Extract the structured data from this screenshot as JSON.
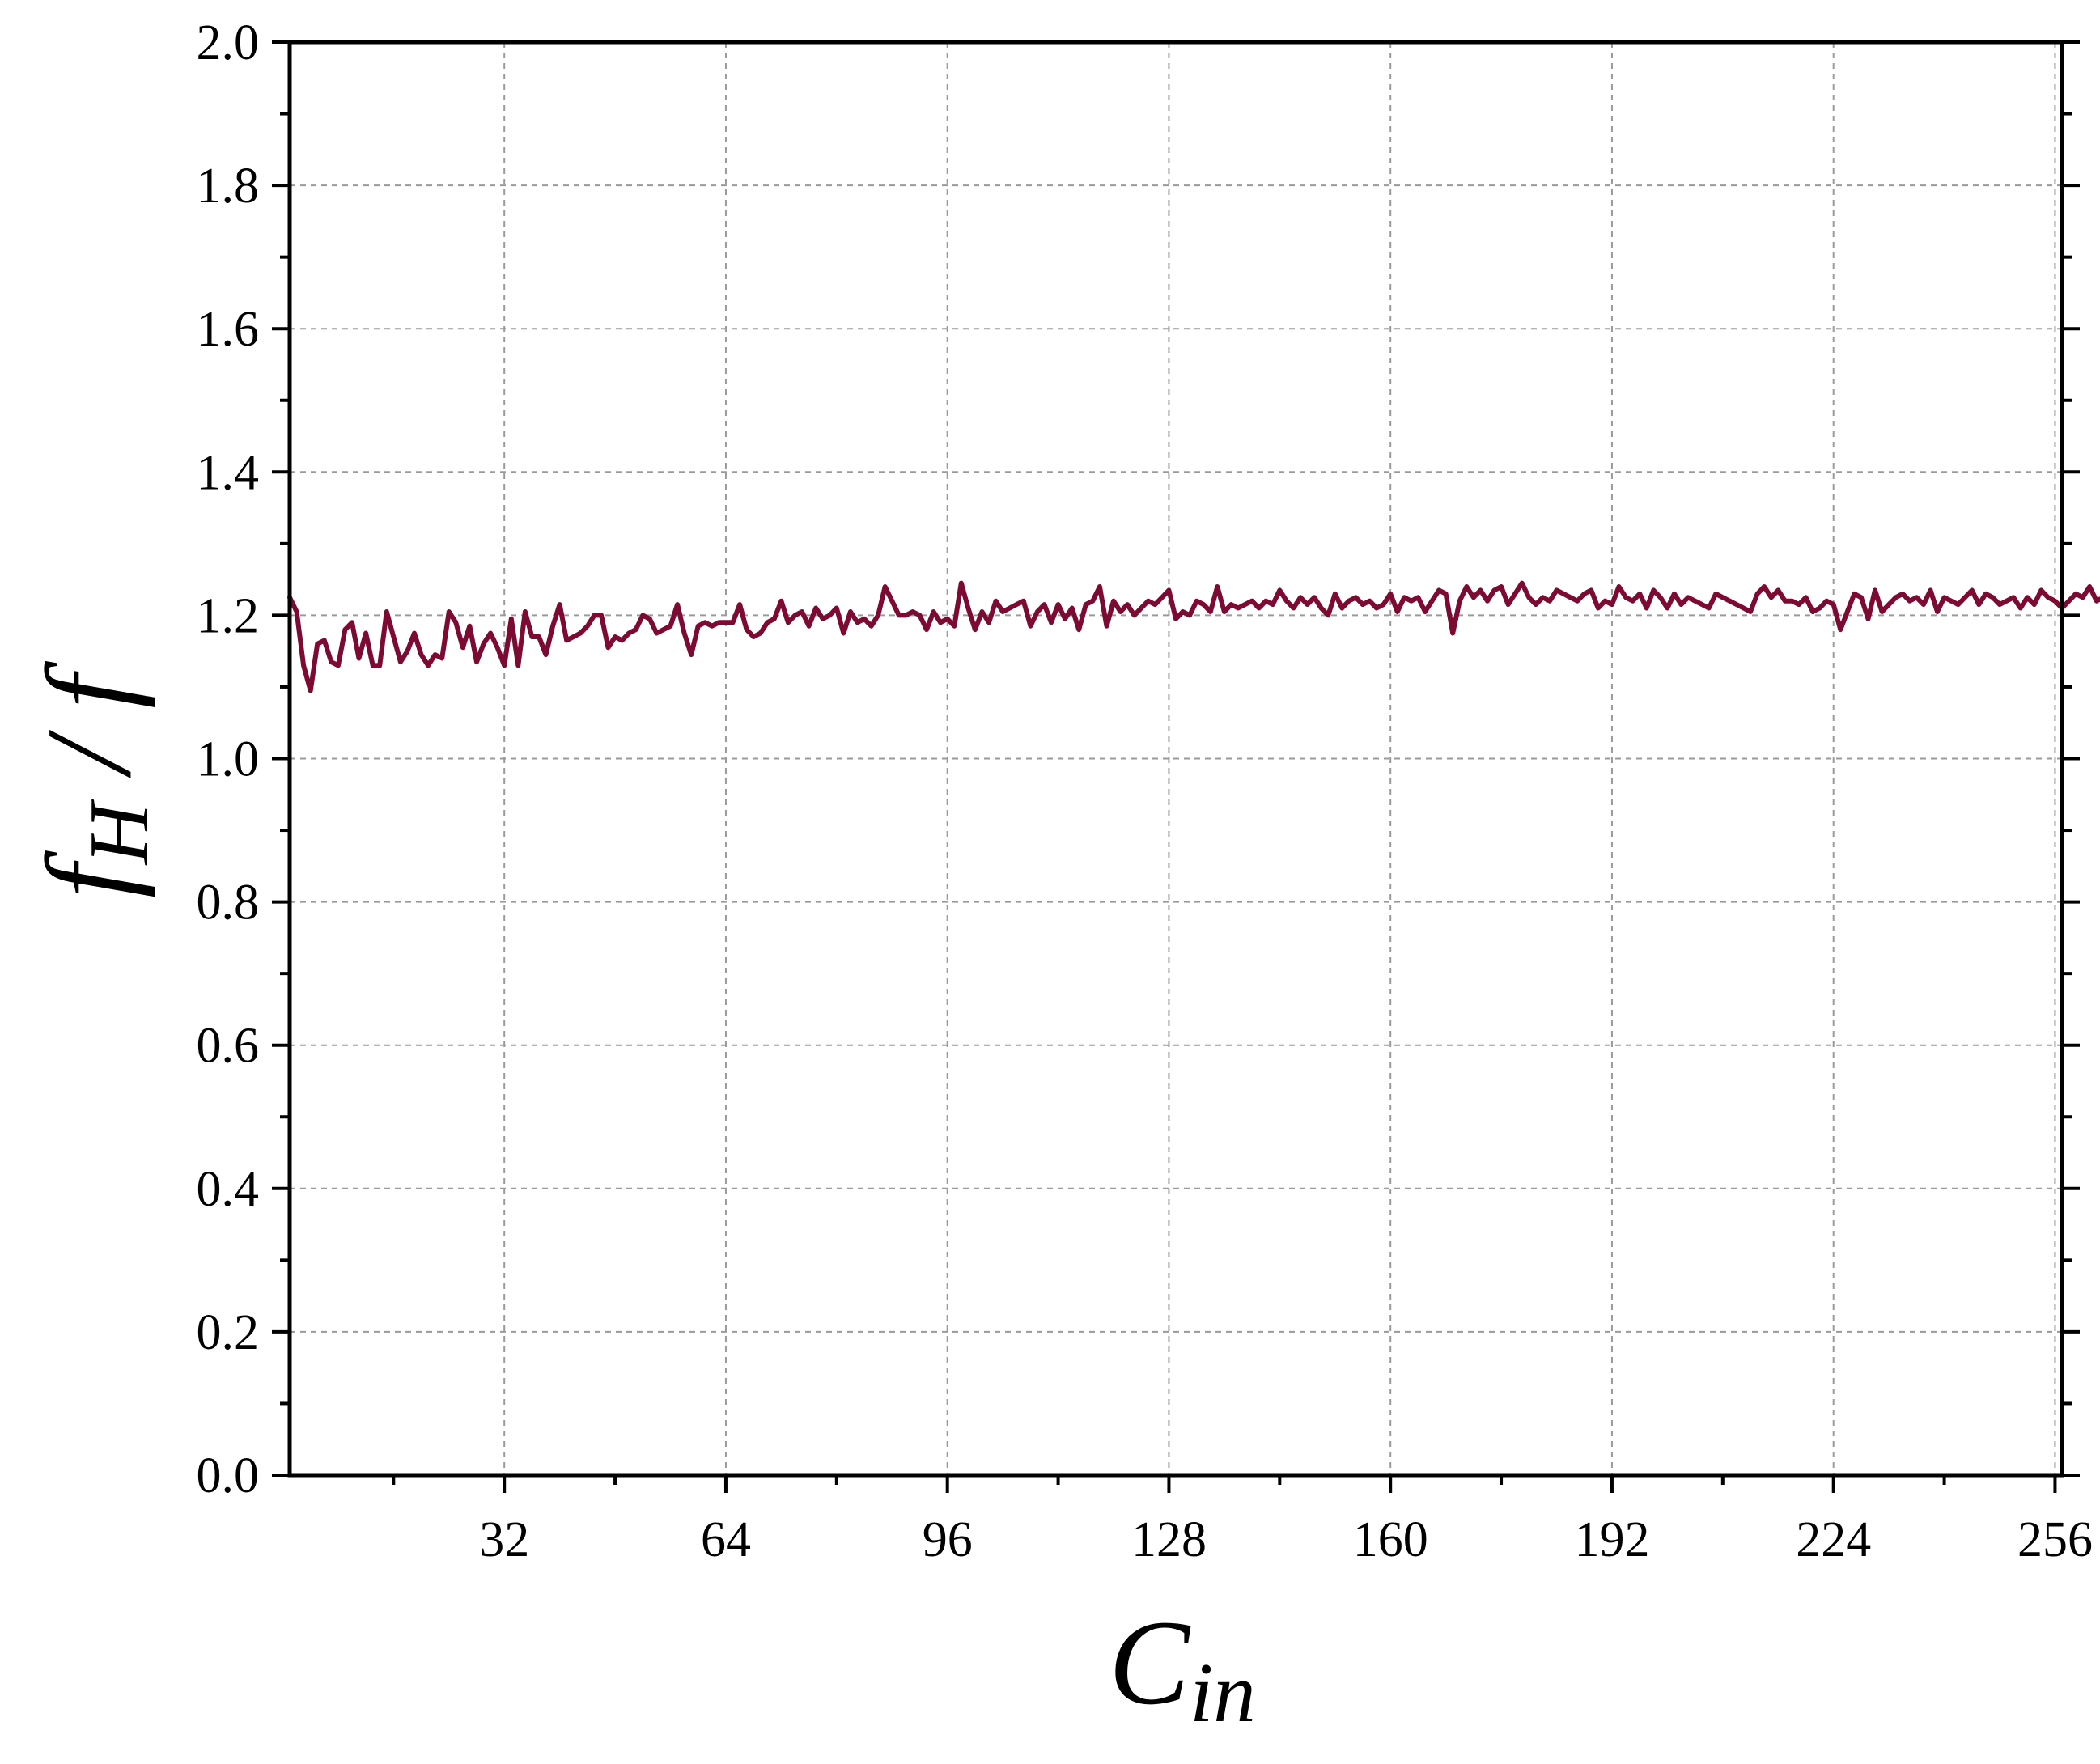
{
  "chart_data": {
    "type": "line",
    "title": "",
    "xlabel": {
      "main": "C",
      "sub": "in"
    },
    "ylabel": {
      "main": "f",
      "sub": "H",
      "sep": " / ",
      "denom": "f"
    },
    "xlim": [
      1,
      257
    ],
    "ylim": [
      0.0,
      2.0
    ],
    "xticks": [
      32,
      64,
      96,
      128,
      160,
      192,
      224,
      256
    ],
    "xtick_labels": [
      "32",
      "64",
      "96",
      "128",
      "160",
      "192",
      "224",
      "256"
    ],
    "yticks": [
      0.0,
      0.2,
      0.4,
      0.6,
      0.8,
      1.0,
      1.2,
      1.4,
      1.6,
      1.8,
      2.0
    ],
    "ytick_labels": [
      "0.0",
      "0.2",
      "0.4",
      "0.6",
      "0.8",
      "1.0",
      "1.2",
      "1.4",
      "1.6",
      "1.8",
      "2.0"
    ],
    "grid": true,
    "colors": {
      "series": "#7d0a33",
      "grid": "#9a9a9a",
      "axis": "#000000"
    },
    "series": [
      {
        "x_start": 1,
        "x_step": 1,
        "values": [
          1.225,
          1.205,
          1.13,
          1.095,
          1.16,
          1.165,
          1.135,
          1.13,
          1.18,
          1.19,
          1.14,
          1.175,
          1.13,
          1.13,
          1.205,
          1.17,
          1.135,
          1.15,
          1.175,
          1.145,
          1.13,
          1.145,
          1.14,
          1.205,
          1.19,
          1.155,
          1.185,
          1.135,
          1.16,
          1.175,
          1.155,
          1.13,
          1.195,
          1.13,
          1.205,
          1.17,
          1.17,
          1.145,
          1.185,
          1.215,
          1.165,
          1.17,
          1.175,
          1.185,
          1.2,
          1.2,
          1.155,
          1.17,
          1.165,
          1.175,
          1.18,
          1.2,
          1.195,
          1.175,
          1.18,
          1.185,
          1.215,
          1.175,
          1.145,
          1.185,
          1.19,
          1.185,
          1.19,
          1.19,
          1.19,
          1.215,
          1.18,
          1.17,
          1.175,
          1.19,
          1.195,
          1.22,
          1.19,
          1.2,
          1.205,
          1.185,
          1.21,
          1.195,
          1.2,
          1.21,
          1.175,
          1.205,
          1.19,
          1.195,
          1.185,
          1.2,
          1.24,
          1.22,
          1.2,
          1.2,
          1.205,
          1.2,
          1.18,
          1.205,
          1.19,
          1.195,
          1.185,
          1.245,
          1.21,
          1.18,
          1.205,
          1.19,
          1.22,
          1.205,
          1.21,
          1.215,
          1.22,
          1.185,
          1.205,
          1.215,
          1.19,
          1.215,
          1.195,
          1.21,
          1.18,
          1.215,
          1.22,
          1.24,
          1.185,
          1.22,
          1.205,
          1.215,
          1.2,
          1.21,
          1.22,
          1.215,
          1.225,
          1.235,
          1.195,
          1.205,
          1.2,
          1.22,
          1.215,
          1.205,
          1.24,
          1.205,
          1.215,
          1.21,
          1.215,
          1.22,
          1.21,
          1.22,
          1.215,
          1.235,
          1.22,
          1.21,
          1.225,
          1.215,
          1.225,
          1.21,
          1.2,
          1.23,
          1.21,
          1.22,
          1.225,
          1.215,
          1.22,
          1.21,
          1.215,
          1.23,
          1.205,
          1.225,
          1.22,
          1.225,
          1.205,
          1.22,
          1.235,
          1.23,
          1.175,
          1.22,
          1.24,
          1.225,
          1.235,
          1.22,
          1.235,
          1.24,
          1.215,
          1.23,
          1.245,
          1.225,
          1.215,
          1.225,
          1.22,
          1.235,
          1.23,
          1.225,
          1.22,
          1.23,
          1.235,
          1.21,
          1.22,
          1.215,
          1.24,
          1.225,
          1.22,
          1.23,
          1.21,
          1.235,
          1.225,
          1.21,
          1.23,
          1.215,
          1.225,
          1.22,
          1.215,
          1.21,
          1.23,
          1.225,
          1.22,
          1.215,
          1.21,
          1.205,
          1.23,
          1.24,
          1.225,
          1.235,
          1.22,
          1.22,
          1.215,
          1.225,
          1.205,
          1.21,
          1.22,
          1.215,
          1.18,
          1.205,
          1.23,
          1.225,
          1.195,
          1.235,
          1.205,
          1.215,
          1.225,
          1.23,
          1.22,
          1.225,
          1.215,
          1.235,
          1.205,
          1.225,
          1.22,
          1.215,
          1.225,
          1.235,
          1.215,
          1.23,
          1.225,
          1.215,
          1.22,
          1.225,
          1.21,
          1.225,
          1.215,
          1.235,
          1.225,
          1.22,
          1.21,
          1.22,
          1.23,
          1.225,
          1.24,
          1.22,
          1.225,
          1.235,
          1.23,
          1.225,
          1.22,
          1.225,
          1.18,
          1.21,
          1.225,
          1.23,
          1.225,
          1.215,
          1.225,
          1.22,
          1.23,
          1.215,
          1.225,
          1.22,
          1.215,
          1.225,
          1.22,
          1.23,
          1.22,
          1.19,
          1.23,
          1.225,
          1.235
        ]
      }
    ]
  }
}
